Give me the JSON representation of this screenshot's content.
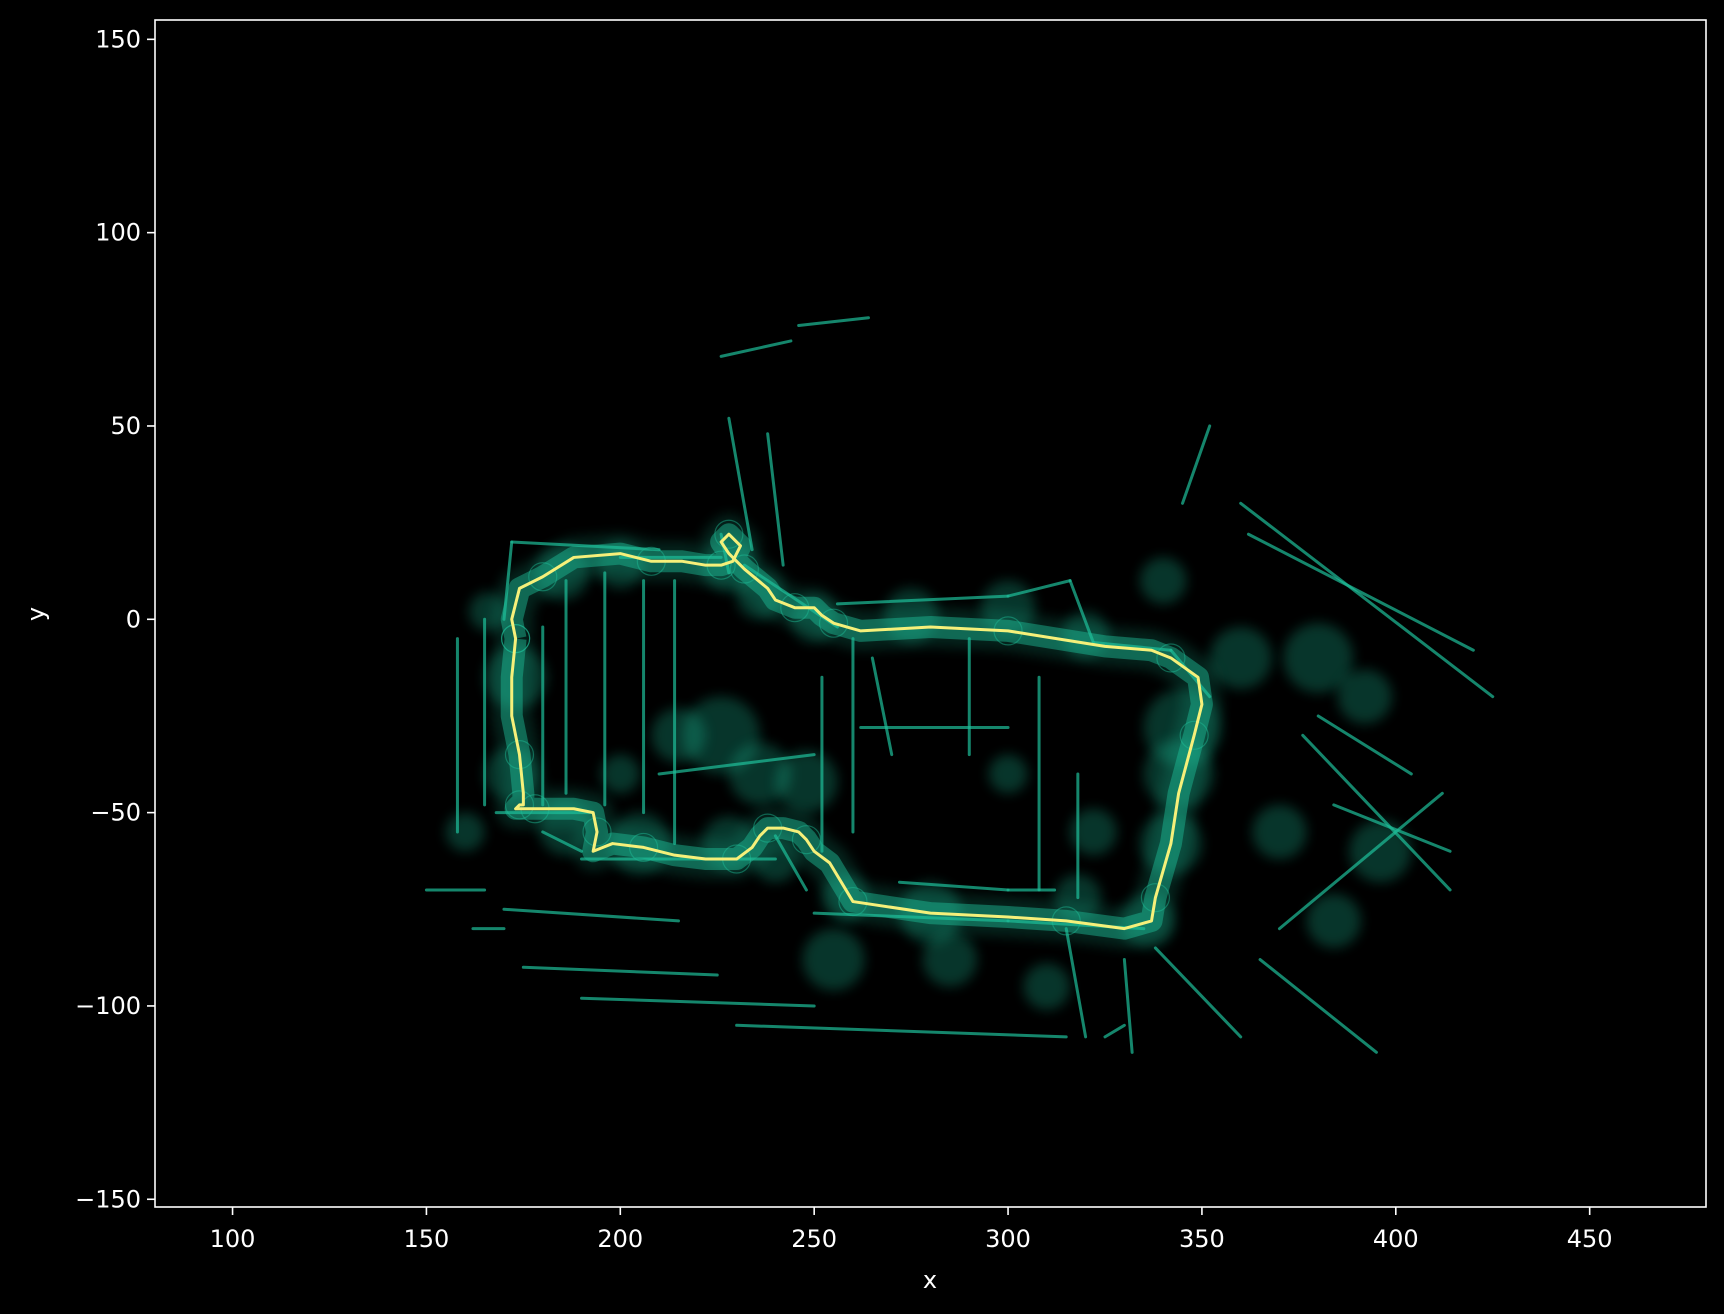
{
  "chart_data": {
    "type": "scatter",
    "title": "",
    "xlabel": "x",
    "ylabel": "y",
    "xlim": [
      80,
      480
    ],
    "ylim": [
      -152,
      155
    ],
    "xticks": [
      100,
      150,
      200,
      250,
      300,
      350,
      400,
      450
    ],
    "yticks": [
      150,
      100,
      50,
      0,
      -50,
      -100,
      -150
    ],
    "grid": false,
    "legend": "none",
    "colors": {
      "background": "#000000",
      "points": "#1fbf9a",
      "trajectory": "#f5f07a",
      "axes": "#ffffff"
    },
    "series": [
      {
        "kind": "point-cloud-walls",
        "segments": [
          [
            [
              172,
              20
            ],
            [
              210,
              18
            ]
          ],
          [
            [
              172,
              20
            ],
            [
              170,
              0
            ]
          ],
          [
            [
              165,
              0
            ],
            [
              165,
              -48
            ]
          ],
          [
            [
              158,
              -5
            ],
            [
              158,
              -55
            ]
          ],
          [
            [
              168,
              -50
            ],
            [
              192,
              -50
            ]
          ],
          [
            [
              180,
              -2
            ],
            [
              180,
              -48
            ]
          ],
          [
            [
              186,
              10
            ],
            [
              186,
              -45
            ]
          ],
          [
            [
              196,
              12
            ],
            [
              196,
              -48
            ]
          ],
          [
            [
              206,
              10
            ],
            [
              206,
              -50
            ]
          ],
          [
            [
              214,
              10
            ],
            [
              214,
              -58
            ]
          ],
          [
            [
              200,
              16
            ],
            [
              226,
              16
            ]
          ],
          [
            [
              226,
              22
            ],
            [
              228,
              12
            ]
          ],
          [
            [
              232,
              14
            ],
            [
              256,
              -2
            ]
          ],
          [
            [
              256,
              4
            ],
            [
              300,
              6
            ]
          ],
          [
            [
              300,
              6
            ],
            [
              316,
              10
            ]
          ],
          [
            [
              316,
              10
            ],
            [
              322,
              -6
            ]
          ],
          [
            [
              322,
              -6
            ],
            [
              342,
              -8
            ]
          ],
          [
            [
              342,
              -8
            ],
            [
              352,
              -20
            ]
          ],
          [
            [
              290,
              -5
            ],
            [
              290,
              -35
            ]
          ],
          [
            [
              260,
              -5
            ],
            [
              260,
              -55
            ]
          ],
          [
            [
              252,
              -15
            ],
            [
              252,
              -60
            ]
          ],
          [
            [
              262,
              -28
            ],
            [
              300,
              -28
            ]
          ],
          [
            [
              308,
              -15
            ],
            [
              308,
              -70
            ]
          ],
          [
            [
              300,
              -70
            ],
            [
              312,
              -70
            ]
          ],
          [
            [
              318,
              -40
            ],
            [
              318,
              -72
            ]
          ],
          [
            [
              272,
              -68
            ],
            [
              300,
              -70
            ]
          ],
          [
            [
              250,
              -76
            ],
            [
              300,
              -78
            ]
          ],
          [
            [
              300,
              -78
            ],
            [
              335,
              -80
            ]
          ],
          [
            [
              180,
              -55
            ],
            [
              190,
              -60
            ]
          ],
          [
            [
              190,
              -62
            ],
            [
              240,
              -62
            ]
          ],
          [
            [
              240,
              -56
            ],
            [
              248,
              -70
            ]
          ],
          [
            [
              170,
              -75
            ],
            [
              215,
              -78
            ]
          ],
          [
            [
              175,
              -90
            ],
            [
              225,
              -92
            ]
          ],
          [
            [
              190,
              -98
            ],
            [
              250,
              -100
            ]
          ],
          [
            [
              230,
              -105
            ],
            [
              315,
              -108
            ]
          ],
          [
            [
              315,
              -80
            ],
            [
              320,
              -108
            ]
          ],
          [
            [
              325,
              -108
            ],
            [
              330,
              -105
            ]
          ],
          [
            [
              330,
              -88
            ],
            [
              332,
              -112
            ]
          ],
          [
            [
              338,
              -85
            ],
            [
              360,
              -108
            ]
          ],
          [
            [
              370,
              -80
            ],
            [
              412,
              -45
            ]
          ],
          [
            [
              376,
              -30
            ],
            [
              414,
              -70
            ]
          ],
          [
            [
              360,
              30
            ],
            [
              425,
              -20
            ]
          ],
          [
            [
              362,
              22
            ],
            [
              420,
              -8
            ]
          ],
          [
            [
              380,
              -25
            ],
            [
              404,
              -40
            ]
          ],
          [
            [
              384,
              -48
            ],
            [
              414,
              -60
            ]
          ],
          [
            [
              365,
              -88
            ],
            [
              395,
              -112
            ]
          ],
          [
            [
              228,
              52
            ],
            [
              234,
              18
            ]
          ],
          [
            [
              238,
              48
            ],
            [
              242,
              14
            ]
          ],
          [
            [
              226,
              68
            ],
            [
              244,
              72
            ]
          ],
          [
            [
              246,
              76
            ],
            [
              264,
              78
            ]
          ],
          [
            [
              265,
              -10
            ],
            [
              270,
              -35
            ]
          ],
          [
            [
              210,
              -40
            ],
            [
              250,
              -35
            ]
          ],
          [
            [
              345,
              30
            ],
            [
              352,
              50
            ]
          ],
          [
            [
              150,
              -70
            ],
            [
              165,
              -70
            ]
          ],
          [
            [
              162,
              -80
            ],
            [
              170,
              -80
            ]
          ]
        ],
        "blobs": [
          [
            173,
            -15,
            8
          ],
          [
            172,
            -40,
            7
          ],
          [
            186,
            -54,
            7
          ],
          [
            205,
            -58,
            8
          ],
          [
            228,
            -58,
            7
          ],
          [
            240,
            -62,
            6
          ],
          [
            226,
            -30,
            10
          ],
          [
            236,
            -40,
            8
          ],
          [
            215,
            -30,
            7
          ],
          [
            248,
            -42,
            8
          ],
          [
            185,
            12,
            7
          ],
          [
            200,
            14,
            6
          ],
          [
            228,
            14,
            7
          ],
          [
            236,
            6,
            6
          ],
          [
            250,
            0,
            6
          ],
          [
            275,
            1,
            7
          ],
          [
            300,
            3,
            7
          ],
          [
            320,
            -4,
            6
          ],
          [
            345,
            -28,
            10
          ],
          [
            344,
            -40,
            9
          ],
          [
            342,
            -58,
            8
          ],
          [
            336,
            -78,
            7
          ],
          [
            318,
            -72,
            6
          ],
          [
            280,
            -76,
            8
          ],
          [
            258,
            -72,
            6
          ],
          [
            255,
            -88,
            8
          ],
          [
            285,
            -88,
            7
          ],
          [
            310,
            -95,
            6
          ],
          [
            360,
            -10,
            8
          ],
          [
            380,
            -10,
            9
          ],
          [
            392,
            -20,
            7
          ],
          [
            396,
            -60,
            8
          ],
          [
            384,
            -78,
            7
          ],
          [
            370,
            -55,
            7
          ],
          [
            340,
            10,
            6
          ],
          [
            322,
            -55,
            6
          ],
          [
            300,
            -40,
            5
          ],
          [
            200,
            -40,
            5
          ],
          [
            160,
            -55,
            5
          ],
          [
            166,
            2,
            5
          ]
        ]
      },
      {
        "kind": "trajectory",
        "x": [
          173,
          172,
          172,
          174,
          175,
          175,
          174,
          173,
          174,
          178,
          188,
          193,
          194,
          193,
          198,
          206,
          214,
          222,
          230,
          234,
          236,
          238,
          242,
          246,
          248,
          250,
          254,
          260,
          280,
          300,
          315,
          330,
          337,
          338,
          342,
          344,
          348,
          350,
          349,
          342,
          337,
          325,
          300,
          280,
          262,
          255,
          252,
          250,
          245,
          240,
          238,
          232,
          228,
          226,
          228,
          231,
          229,
          226,
          222,
          216,
          208,
          200,
          188,
          180,
          174,
          172,
          173
        ],
        "y": [
          -5,
          -15,
          -25,
          -35,
          -45,
          -48,
          -48,
          -49,
          -49,
          -49,
          -49,
          -50,
          -55,
          -60,
          -58,
          -59,
          -61,
          -62,
          -62,
          -59,
          -56,
          -54,
          -54,
          -55,
          -57,
          -60,
          -63,
          -73,
          -76,
          -77,
          -78,
          -80,
          -78,
          -72,
          -58,
          -45,
          -30,
          -22,
          -15,
          -10,
          -8,
          -7,
          -3,
          -2,
          -3,
          -1,
          1,
          3,
          3,
          5,
          8,
          13,
          17,
          20,
          22,
          19,
          15,
          14,
          14,
          15,
          15,
          17,
          16,
          11,
          8,
          0,
          -5
        ]
      }
    ]
  }
}
